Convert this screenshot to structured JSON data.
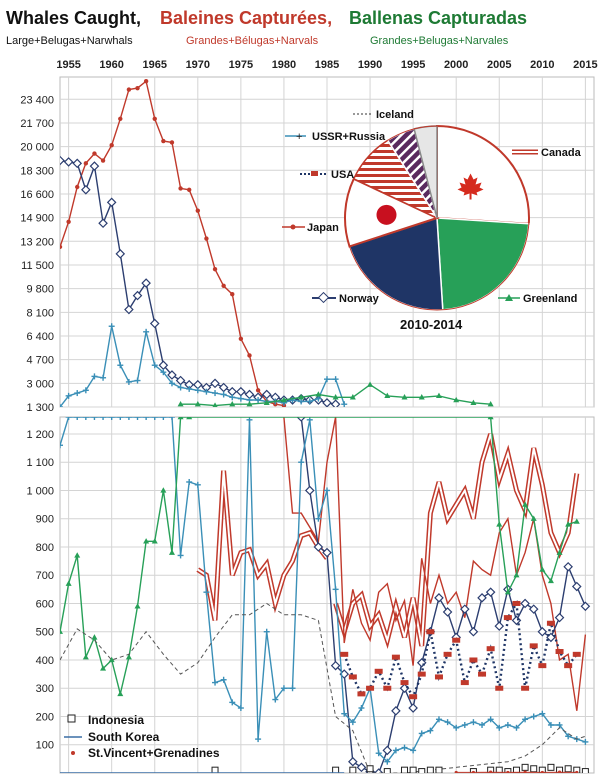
{
  "title": {
    "part1": "Whales Caught,",
    "part2": "Baleines Capturées,",
    "part3": "Ballenas Capturadas",
    "color1": "#111111",
    "color2": "#c0392b",
    "color3": "#1e7a34"
  },
  "subtitle": {
    "en": "Large+Belugas+Narwhals",
    "fr": "Grandes+Bélugas+Narvals",
    "es": "Grandes+Belugas+Narvales"
  },
  "chart_data": [
    {
      "type": "line",
      "panel": "upper",
      "x_ticks": [
        1955,
        1960,
        1965,
        1970,
        1975,
        1980,
        1985,
        1990,
        1995,
        2000,
        2005,
        2010,
        2015
      ],
      "y_ticks": [
        "23 400",
        "21 700",
        "20 000",
        "18 300",
        "16 600",
        "14 900",
        "13 200",
        "11 500",
        "9 800",
        "8 100",
        "6 400",
        "4 700",
        "3 000",
        "1 300"
      ],
      "xlim": [
        1954,
        2016
      ],
      "ylim": [
        1300,
        25000
      ],
      "grid": true,
      "series": [
        {
          "name": "Japan",
          "color": "#c0392b",
          "marker": "dot",
          "x": [
            1954,
            1955,
            1956,
            1957,
            1958,
            1959,
            1960,
            1961,
            1962,
            1963,
            1964,
            1965,
            1966,
            1967,
            1968,
            1969,
            1970,
            1971,
            1972,
            1973,
            1974,
            1975,
            1976,
            1977,
            1978,
            1979,
            1980
          ],
          "y": [
            12800,
            14600,
            17100,
            18800,
            19500,
            19000,
            20100,
            22000,
            24100,
            24200,
            24700,
            22000,
            20400,
            20300,
            17000,
            16900,
            15400,
            13400,
            11200,
            10000,
            9400,
            6200,
            5000,
            2500,
            1700,
            1500,
            1400
          ]
        },
        {
          "name": "Norway",
          "color": "#2c3e70",
          "marker": "diamond",
          "x": [
            1954,
            1955,
            1956,
            1957,
            1958,
            1959,
            1960,
            1961,
            1962,
            1963,
            1964,
            1965,
            1966,
            1967,
            1968,
            1969,
            1970,
            1971,
            1972,
            1973,
            1974,
            1975,
            1976,
            1977,
            1978,
            1979,
            1980,
            1981,
            1982,
            1983,
            1984,
            1985,
            1986
          ],
          "y": [
            19000,
            18900,
            18800,
            16900,
            18600,
            14500,
            16000,
            12300,
            8300,
            9300,
            10200,
            7300,
            4300,
            3600,
            3200,
            2900,
            2900,
            2700,
            3000,
            2700,
            2400,
            2400,
            2200,
            2000,
            2200,
            2000,
            1800,
            1800,
            1900,
            1800,
            1800,
            1600,
            1500
          ]
        },
        {
          "name": "USSR+Russia",
          "color": "#3a8fb7",
          "marker": "plus",
          "x": [
            1954,
            1955,
            1956,
            1957,
            1958,
            1959,
            1960,
            1961,
            1962,
            1963,
            1964,
            1965,
            1966,
            1967,
            1968,
            1969,
            1970,
            1971,
            1972,
            1973,
            1974,
            1975,
            1976,
            1977,
            1978,
            1979,
            1980,
            1981,
            1982,
            1983,
            1984,
            1985,
            1986,
            1987
          ],
          "y": [
            1300,
            2100,
            2300,
            2500,
            3500,
            3400,
            7100,
            4300,
            3100,
            3200,
            6700,
            4300,
            3800,
            3000,
            2700,
            2600,
            2500,
            2400,
            2300,
            2200,
            2000,
            1900,
            1800,
            1800,
            1700,
            1700,
            1600,
            1800,
            1700,
            1700,
            1900,
            3300,
            3300,
            1500
          ]
        },
        {
          "name": "Greenland",
          "color": "#27a058",
          "marker": "triangle",
          "x": [
            1968,
            1970,
            1972,
            1974,
            1976,
            1978,
            1980,
            1982,
            1984,
            1986,
            1988,
            1990,
            1992,
            1994,
            1996,
            1998,
            2000,
            2002,
            2004
          ],
          "y": [
            1500,
            1500,
            1400,
            1500,
            1500,
            1600,
            1800,
            2000,
            2200,
            2000,
            2000,
            2900,
            2100,
            2000,
            2000,
            2100,
            1800,
            1600,
            1500
          ]
        }
      ]
    },
    {
      "type": "pie",
      "panel": "inset",
      "title": "2010-2014",
      "slices": [
        {
          "label": "Canada",
          "value": 26,
          "color": "#ffffff",
          "pattern": "flag-canada",
          "edge": "#c0392b"
        },
        {
          "label": "Greenland",
          "value": 23,
          "color": "#27a058",
          "pattern": "none",
          "edge": "#ffffff"
        },
        {
          "label": "Norway",
          "value": 21,
          "color": "#1f3566",
          "pattern": "none",
          "edge": "#ffffff"
        },
        {
          "label": "Japan",
          "value": 12,
          "color": "#ffffff",
          "pattern": "flag-japan",
          "edge": "#c0392b"
        },
        {
          "label": "USA",
          "value": 9,
          "color": "#ffffff",
          "pattern": "red-stripes",
          "edge": "#c0392b"
        },
        {
          "label": "USSR+Russia",
          "value": 5,
          "color": "#5a2a5e",
          "pattern": "diagonal-stripes",
          "edge": "#ffffff"
        },
        {
          "label": "Iceland",
          "value": 4,
          "color": "#e6e6e6",
          "pattern": "none",
          "edge": "#888888"
        }
      ]
    },
    {
      "type": "line",
      "panel": "lower",
      "y_ticks": [
        "1 200",
        "1 100",
        "1 000",
        "900",
        "800",
        "700",
        "600",
        "500",
        "400",
        "300",
        "200",
        "100"
      ],
      "xlim": [
        1954,
        2016
      ],
      "ylim": [
        0,
        1260
      ],
      "grid": true,
      "series": [
        {
          "name": "Canada",
          "color": "#c0392b",
          "style": "double",
          "x": [
            1970,
            1971,
            1972,
            1973,
            1974,
            1975,
            1976,
            1977,
            1978,
            1979,
            1980,
            1981,
            1982,
            1983,
            1984,
            1985
          ],
          "y": [
            720,
            700,
            540,
            1070,
            700,
            780,
            790,
            700,
            740,
            600,
            700,
            750,
            840,
            850,
            800,
            760
          ]
        },
        {
          "name": "Canada",
          "color": "#c0392b",
          "style": "double",
          "x": [
            1986,
            1987,
            1988,
            1989,
            1990,
            1991,
            1992,
            1993,
            1994,
            1995,
            1996,
            1997,
            1998,
            1999,
            2000,
            2001,
            2002,
            2003,
            2004,
            2005,
            2006,
            2007,
            2008,
            2009,
            2010,
            2011,
            2012,
            2013,
            2014
          ],
          "y": [
            600,
            500,
            600,
            630,
            520,
            560,
            470,
            590,
            480,
            620,
            450,
            920,
            1030,
            900,
            950,
            1000,
            900,
            1100,
            1200,
            1040,
            1130,
            1000,
            930,
            1150,
            1020,
            850,
            780,
            850,
            1060
          ]
        },
        {
          "name": "Japan",
          "color": "#c0392b",
          "style": "single",
          "x": [
            1980,
            1981,
            1982,
            1983,
            1984,
            1985,
            1986,
            1987,
            1988,
            1989,
            1990,
            1991,
            1992,
            1993,
            1994,
            1995,
            1996,
            1997,
            1998,
            1999,
            2000,
            2001,
            2002,
            2003,
            2004,
            2005,
            2006,
            2007,
            2008,
            2009,
            2010,
            2011,
            2012,
            2013,
            2014,
            2015
          ],
          "y": [
            1260,
            920,
            920,
            870,
            820,
            1100,
            1260,
            460,
            650,
            530,
            470,
            640,
            670,
            540,
            610,
            380,
            760,
            600,
            700,
            600,
            640,
            550,
            750,
            720,
            700,
            850,
            900,
            700,
            780,
            900,
            700,
            600,
            400,
            420,
            220,
            490
          ]
        },
        {
          "name": "Norway",
          "color": "#2c3e70",
          "style": "diamond",
          "x": [
            1982,
            1983,
            1984,
            1985,
            1986,
            1987,
            1988,
            1989,
            1990,
            1991,
            1992,
            1993,
            1994,
            1995,
            1996,
            1997,
            1998,
            1999,
            2000,
            2001,
            2002,
            2003,
            2004,
            2005,
            2006,
            2007,
            2008,
            2009,
            2010,
            2011,
            2012,
            2013,
            2014,
            2015
          ],
          "y": [
            1260,
            1000,
            800,
            780,
            380,
            350,
            40,
            20,
            5,
            0,
            80,
            220,
            300,
            230,
            390,
            500,
            620,
            570,
            480,
            580,
            500,
            620,
            640,
            520,
            650,
            540,
            600,
            580,
            500,
            480,
            550,
            730,
            660,
            590
          ]
        },
        {
          "name": "USSR+Russia",
          "color": "#3a8fb7",
          "style": "plus",
          "x": [
            1954,
            1955,
            1956,
            1957,
            1958,
            1959,
            1960,
            1961,
            1962,
            1963,
            1964,
            1965,
            1966,
            1967,
            1968,
            1969,
            1970,
            1971,
            1972,
            1973,
            1974,
            1975,
            1976,
            1977,
            1978,
            1979,
            1980,
            1981,
            1982,
            1983,
            1984,
            1985,
            1986,
            1987,
            1988,
            1989,
            1990,
            1991,
            1992,
            1993,
            1994,
            1995,
            1996,
            1997,
            1998,
            1999,
            2000,
            2001,
            2002,
            2003,
            2004,
            2005,
            2006,
            2007,
            2008,
            2009,
            2010,
            2011,
            2012,
            2013,
            2014,
            2015
          ],
          "y": [
            1160,
            1260,
            1260,
            1260,
            1260,
            1260,
            1260,
            1260,
            1260,
            1260,
            1260,
            1260,
            1260,
            1260,
            770,
            1030,
            1020,
            640,
            320,
            330,
            250,
            230,
            1250,
            120,
            500,
            260,
            300,
            300,
            1100,
            1250,
            900,
            1000,
            650,
            210,
            180,
            230,
            300,
            70,
            40,
            80,
            90,
            80,
            140,
            150,
            190,
            180,
            160,
            170,
            180,
            170,
            190,
            160,
            170,
            160,
            190,
            200,
            210,
            170,
            170,
            130,
            120,
            110
          ]
        },
        {
          "name": "Greenland",
          "color": "#27a058",
          "style": "triangle",
          "x": [
            1954,
            1955,
            1956,
            1957,
            1958,
            1959,
            1960,
            1961,
            1962,
            1963,
            1964,
            1965,
            1966,
            1967,
            1968,
            1969,
            2004,
            2005,
            2006,
            2007,
            2008,
            2009,
            2010,
            2011,
            2012,
            2013,
            2014
          ],
          "y": [
            500,
            670,
            770,
            410,
            480,
            370,
            400,
            280,
            410,
            590,
            820,
            820,
            1000,
            780,
            1260,
            1260,
            1260,
            880,
            640,
            700,
            950,
            900,
            720,
            680,
            780,
            880,
            890
          ]
        },
        {
          "name": "USA",
          "color": "#1f3566",
          "style": "dotted",
          "x": [
            1987,
            1988,
            1989,
            1990,
            1991,
            1992,
            1993,
            1994,
            1995,
            1996,
            1997,
            1998,
            1999,
            2000,
            2001,
            2002,
            2003,
            2004,
            2005,
            2006,
            2007,
            2008,
            2009,
            2010,
            2011,
            2012,
            2013,
            2014
          ],
          "y": [
            420,
            340,
            280,
            300,
            360,
            300,
            410,
            320,
            270,
            350,
            500,
            340,
            420,
            470,
            320,
            400,
            350,
            440,
            300,
            550,
            600,
            300,
            450,
            380,
            530,
            430,
            380,
            420
          ]
        },
        {
          "name": "Iceland",
          "color": "#555555",
          "style": "dashed",
          "x": [
            1954,
            1956,
            1958,
            1960,
            1962,
            1964,
            1966,
            1968,
            1970,
            1972,
            1974,
            1976,
            1978,
            1980,
            1982,
            1984,
            1986,
            1988,
            1990,
            1992,
            1994,
            2006,
            2008,
            2010,
            2012,
            2014,
            2015
          ],
          "y": [
            400,
            510,
            470,
            400,
            420,
            500,
            420,
            350,
            390,
            480,
            560,
            560,
            600,
            560,
            560,
            540,
            200,
            150,
            0,
            0,
            0,
            40,
            60,
            100,
            160,
            120,
            130
          ]
        },
        {
          "name": "Indonesia",
          "color": "#222222",
          "style": "square",
          "x": [
            1972,
            1986,
            1988,
            1990,
            1992,
            1994,
            1995,
            1996,
            1997,
            1998,
            2002,
            2004,
            2005,
            2006,
            2007,
            2008,
            2009,
            2010,
            2011,
            2012,
            2013,
            2014,
            2015
          ],
          "y": [
            10,
            10,
            10,
            15,
            5,
            10,
            10,
            5,
            10,
            10,
            5,
            10,
            10,
            5,
            10,
            20,
            15,
            10,
            20,
            10,
            15,
            10,
            5
          ]
        },
        {
          "name": "South Korea",
          "color": "#3a6ea5",
          "style": "single",
          "x": [
            1954,
            1960,
            1970,
            1980,
            1985,
            1986,
            1987
          ],
          "y": [
            0,
            0,
            0,
            0,
            0,
            0,
            0
          ]
        },
        {
          "name": "St.Vincent+Grenadines",
          "color": "#c0392b",
          "style": "small-dot",
          "x": [
            2000,
            2002,
            2004,
            2006,
            2008,
            2010,
            2012,
            2014
          ],
          "y": [
            2,
            2,
            3,
            2,
            3,
            2,
            3,
            2
          ]
        }
      ],
      "legend": [
        "Indonesia",
        "South Korea",
        "St.Vincent+Grenadines"
      ]
    }
  ]
}
